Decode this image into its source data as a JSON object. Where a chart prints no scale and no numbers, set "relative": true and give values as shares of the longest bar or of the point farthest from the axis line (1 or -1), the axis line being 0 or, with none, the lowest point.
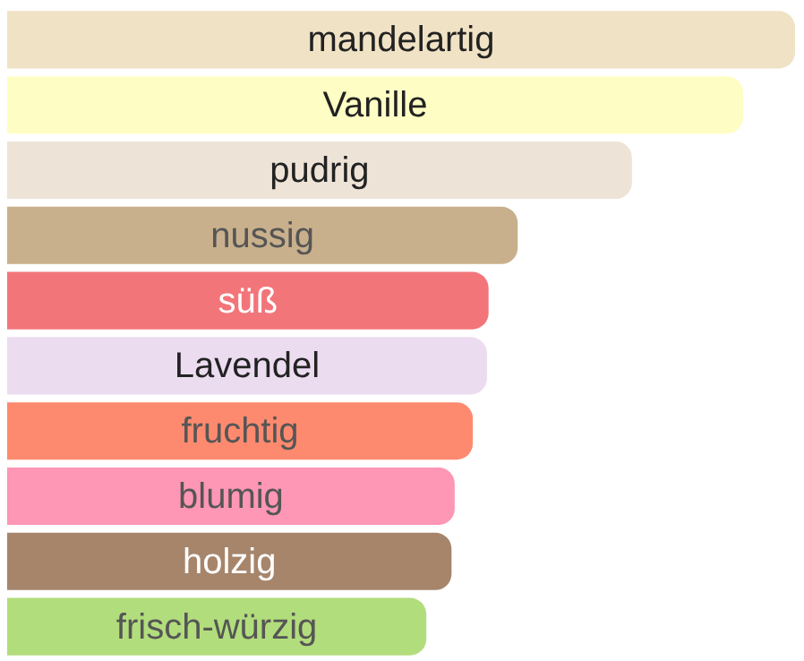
{
  "chart_data": {
    "type": "bar",
    "orientation": "horizontal",
    "relative": true,
    "legend": false,
    "categories": [
      "mandelartig",
      "Vanille",
      "pudrig",
      "nussig",
      "süß",
      "Lavendel",
      "fruchtig",
      "blumig",
      "holzig",
      "frisch-würzig"
    ],
    "values": [
      1,
      0.934,
      0.793,
      0.648,
      0.611,
      0.609,
      0.591,
      0.568,
      0.564,
      0.532
    ],
    "colors": [
      "#f0e2c4",
      "#fefec4",
      "#eee3d7",
      "#c9b08c",
      "#f2757a",
      "#ecdcf0",
      "#fd8a6f",
      "#fe96b6",
      "#a6856b",
      "#b2dd7c"
    ]
  }
}
